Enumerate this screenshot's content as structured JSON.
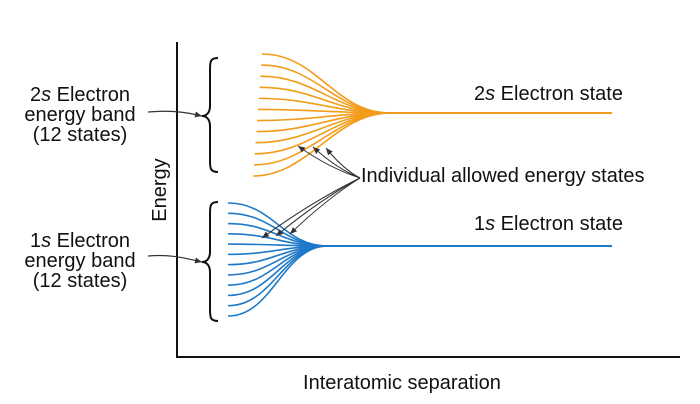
{
  "axes": {
    "x_label": "Interatomic separation",
    "y_label": "Energy"
  },
  "band_2s": {
    "label": {
      "prefix": "2",
      "orbital": "s",
      "line1_rest": " Electron",
      "line2": "energy band",
      "line3": "(12 states)"
    },
    "state": {
      "prefix": "2",
      "orbital": "s",
      "rest": " Electron state"
    },
    "states_count": 12,
    "color": "#F39C1B"
  },
  "band_1s": {
    "label": {
      "prefix": "1",
      "orbital": "s",
      "line1_rest": " Electron",
      "line2": "energy band",
      "line3": "(12 states)"
    },
    "state": {
      "prefix": "1",
      "orbital": "s",
      "rest": " Electron state"
    },
    "states_count": 12,
    "color": "#1F78C8"
  },
  "annotation": {
    "text": "Individual allowed energy states"
  },
  "colors": {
    "axis": "#111111",
    "text": "#111111",
    "arrow": "#333333"
  }
}
